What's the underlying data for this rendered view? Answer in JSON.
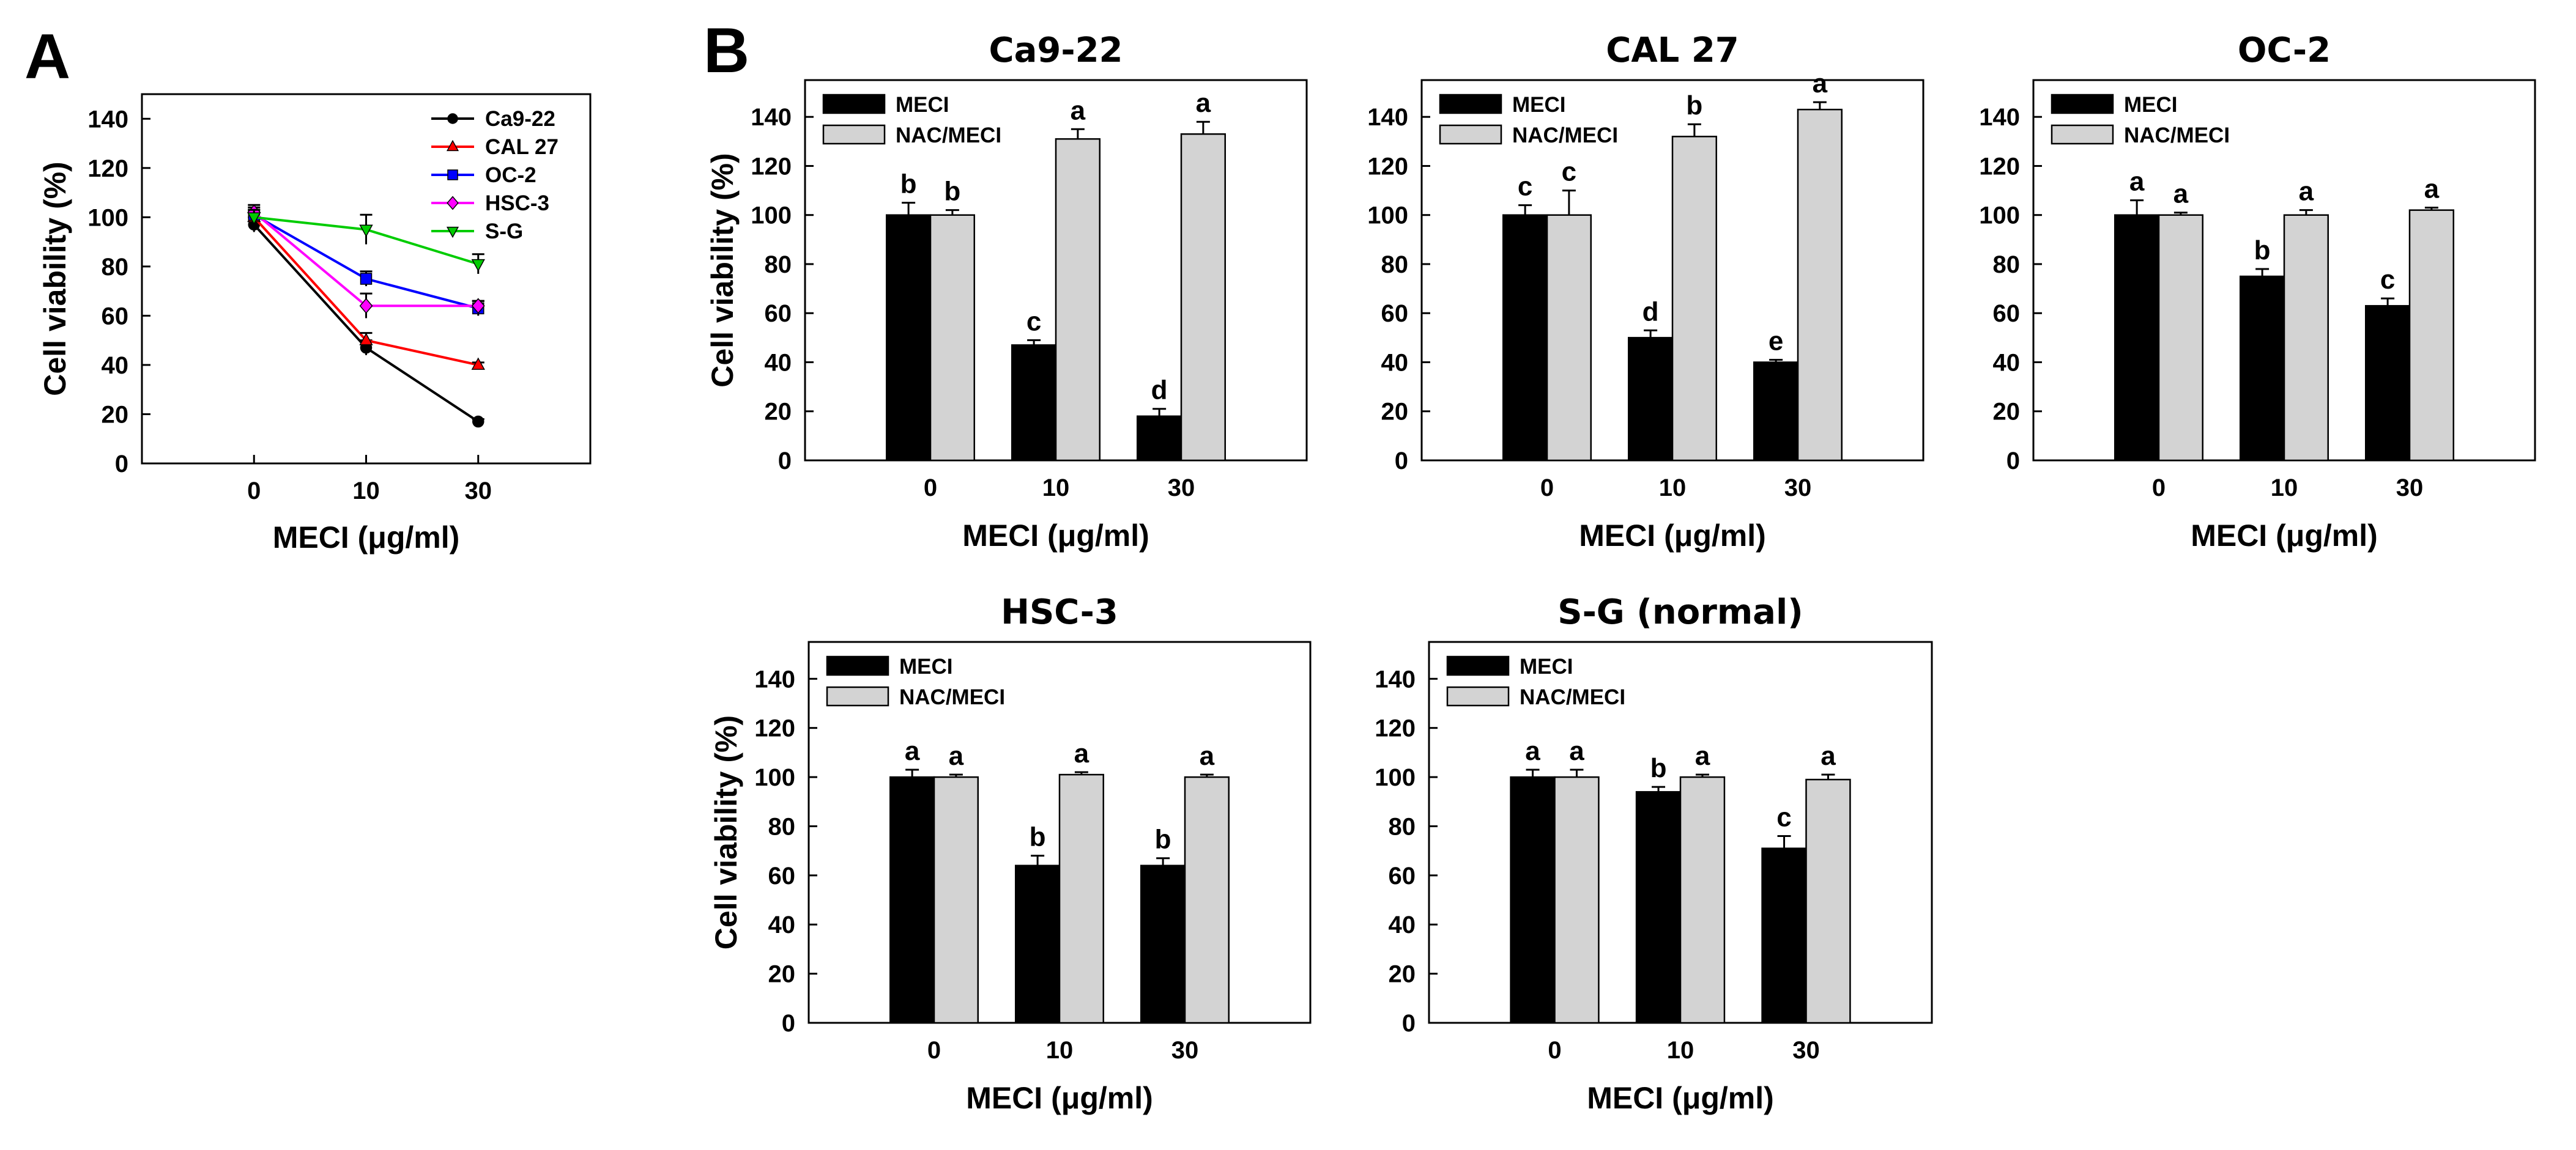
{
  "figure": {
    "panel_a_label": "A",
    "panel_b_label": "B"
  },
  "chart_data": [
    {
      "id": "A",
      "type": "line",
      "title": "",
      "xlabel": "MECI (μg/ml)",
      "ylabel": "Cell viability (%)",
      "categories": [
        "0",
        "10",
        "30"
      ],
      "ylim": [
        0,
        150
      ],
      "yticks": [
        0,
        20,
        40,
        60,
        80,
        100,
        120,
        140
      ],
      "legend_position": "top-right",
      "series": [
        {
          "name": "Ca9-22",
          "values": [
            97,
            47,
            17
          ],
          "errors": [
            3,
            3,
            1
          ],
          "color": "#000000",
          "marker": "circle"
        },
        {
          "name": "CAL 27",
          "values": [
            100,
            50,
            40
          ],
          "errors": [
            3,
            3,
            1
          ],
          "color": "#ff0000",
          "marker": "triangle-up"
        },
        {
          "name": "OC-2",
          "values": [
            101,
            75,
            63
          ],
          "errors": [
            3,
            3,
            3
          ],
          "color": "#0000ff",
          "marker": "square"
        },
        {
          "name": "HSC-3",
          "values": [
            102,
            64,
            64
          ],
          "errors": [
            3,
            5,
            2
          ],
          "color": "#ff00ff",
          "marker": "diamond"
        },
        {
          "name": "S-G",
          "values": [
            100,
            95,
            81
          ],
          "errors": [
            3,
            6,
            4
          ],
          "color": "#00cc00",
          "marker": "triangle-down"
        }
      ]
    },
    {
      "id": "Ca9-22",
      "type": "bar",
      "title": "Ca9-22",
      "xlabel": "MECI (μg/ml)",
      "ylabel": "Cell viability (%)",
      "categories": [
        "0",
        "10",
        "30"
      ],
      "ylim": [
        0,
        155
      ],
      "yticks": [
        0,
        20,
        40,
        60,
        80,
        100,
        120,
        140
      ],
      "series": [
        {
          "name": "MECI",
          "values": [
            100,
            47,
            18
          ],
          "errors": [
            5,
            2,
            3
          ],
          "letters": [
            "b",
            "c",
            "d"
          ]
        },
        {
          "name": "NAC/MECI",
          "values": [
            100,
            131,
            133
          ],
          "errors": [
            2,
            4,
            5
          ],
          "letters": [
            "b",
            "a",
            "a"
          ]
        }
      ]
    },
    {
      "id": "CAL27",
      "type": "bar",
      "title": "CAL 27",
      "xlabel": "MECI (μg/ml)",
      "ylabel": "",
      "categories": [
        "0",
        "10",
        "30"
      ],
      "ylim": [
        0,
        155
      ],
      "yticks": [
        0,
        20,
        40,
        60,
        80,
        100,
        120,
        140
      ],
      "series": [
        {
          "name": "MECI",
          "values": [
            100,
            50,
            40
          ],
          "errors": [
            4,
            3,
            1
          ],
          "letters": [
            "c",
            "d",
            "e"
          ]
        },
        {
          "name": "NAC/MECI",
          "values": [
            100,
            132,
            143
          ],
          "errors": [
            10,
            5,
            3
          ],
          "letters": [
            "c",
            "b",
            "a"
          ]
        }
      ]
    },
    {
      "id": "OC-2",
      "type": "bar",
      "title": "OC-2",
      "xlabel": "MECI (μg/ml)",
      "ylabel": "",
      "categories": [
        "0",
        "10",
        "30"
      ],
      "ylim": [
        0,
        155
      ],
      "yticks": [
        0,
        20,
        40,
        60,
        80,
        100,
        120,
        140
      ],
      "series": [
        {
          "name": "MECI",
          "values": [
            100,
            75,
            63
          ],
          "errors": [
            6,
            3,
            3
          ],
          "letters": [
            "a",
            "b",
            "c"
          ]
        },
        {
          "name": "NAC/MECI",
          "values": [
            100,
            100,
            102
          ],
          "errors": [
            1,
            2,
            1
          ],
          "letters": [
            "a",
            "a",
            "a"
          ]
        }
      ]
    },
    {
      "id": "HSC-3",
      "type": "bar",
      "title": "HSC-3",
      "xlabel": "MECI (μg/ml)",
      "ylabel": "Cell viability (%)",
      "categories": [
        "0",
        "10",
        "30"
      ],
      "ylim": [
        0,
        155
      ],
      "yticks": [
        0,
        20,
        40,
        60,
        80,
        100,
        120,
        140
      ],
      "series": [
        {
          "name": "MECI",
          "values": [
            100,
            64,
            64
          ],
          "errors": [
            3,
            4,
            3
          ],
          "letters": [
            "a",
            "b",
            "b"
          ]
        },
        {
          "name": "NAC/MECI",
          "values": [
            100,
            101,
            100
          ],
          "errors": [
            1,
            1,
            1
          ],
          "letters": [
            "a",
            "a",
            "a"
          ]
        }
      ]
    },
    {
      "id": "S-G",
      "type": "bar",
      "title": "S-G (normal)",
      "xlabel": "MECI (μg/ml)",
      "ylabel": "",
      "categories": [
        "0",
        "10",
        "30"
      ],
      "ylim": [
        0,
        155
      ],
      "yticks": [
        0,
        20,
        40,
        60,
        80,
        100,
        120,
        140
      ],
      "series": [
        {
          "name": "MECI",
          "values": [
            100,
            94,
            71
          ],
          "errors": [
            3,
            2,
            5
          ],
          "letters": [
            "a",
            "b",
            "c"
          ]
        },
        {
          "name": "NAC/MECI",
          "values": [
            100,
            100,
            99
          ],
          "errors": [
            3,
            1,
            2
          ],
          "letters": [
            "a",
            "a",
            "a"
          ]
        }
      ]
    }
  ],
  "colors": {
    "meci_bar": "#000000",
    "nac_bar": "#d3d3d3",
    "axis": "#000000"
  }
}
